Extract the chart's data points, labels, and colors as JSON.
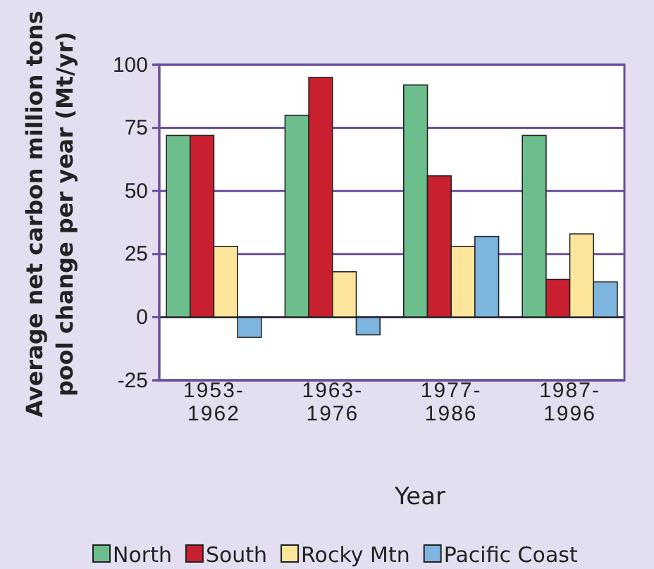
{
  "chart_data": {
    "type": "bar",
    "xlabel": "Year",
    "ylabel": "Average net carbon million tons\npool change per year (Mt/yr)",
    "categories": [
      "1953-1962",
      "1963-1976",
      "1977-1986",
      "1987-1996"
    ],
    "series": [
      {
        "name": "North",
        "color": "#6cbf8c",
        "values": [
          72,
          80,
          92,
          72
        ]
      },
      {
        "name": "South",
        "color": "#c8202f",
        "values": [
          72,
          95,
          56,
          15
        ]
      },
      {
        "name": "Rocky Mtn",
        "color": "#fde59c",
        "values": [
          28,
          18,
          28,
          33
        ]
      },
      {
        "name": "Pacific Coast",
        "color": "#7db5df",
        "values": [
          -8,
          -7,
          32,
          14
        ]
      }
    ],
    "ylim": [
      -25,
      100
    ],
    "yticks": [
      -25,
      0,
      25,
      50,
      75,
      100
    ],
    "grid": "y",
    "legend": "bottom"
  }
}
